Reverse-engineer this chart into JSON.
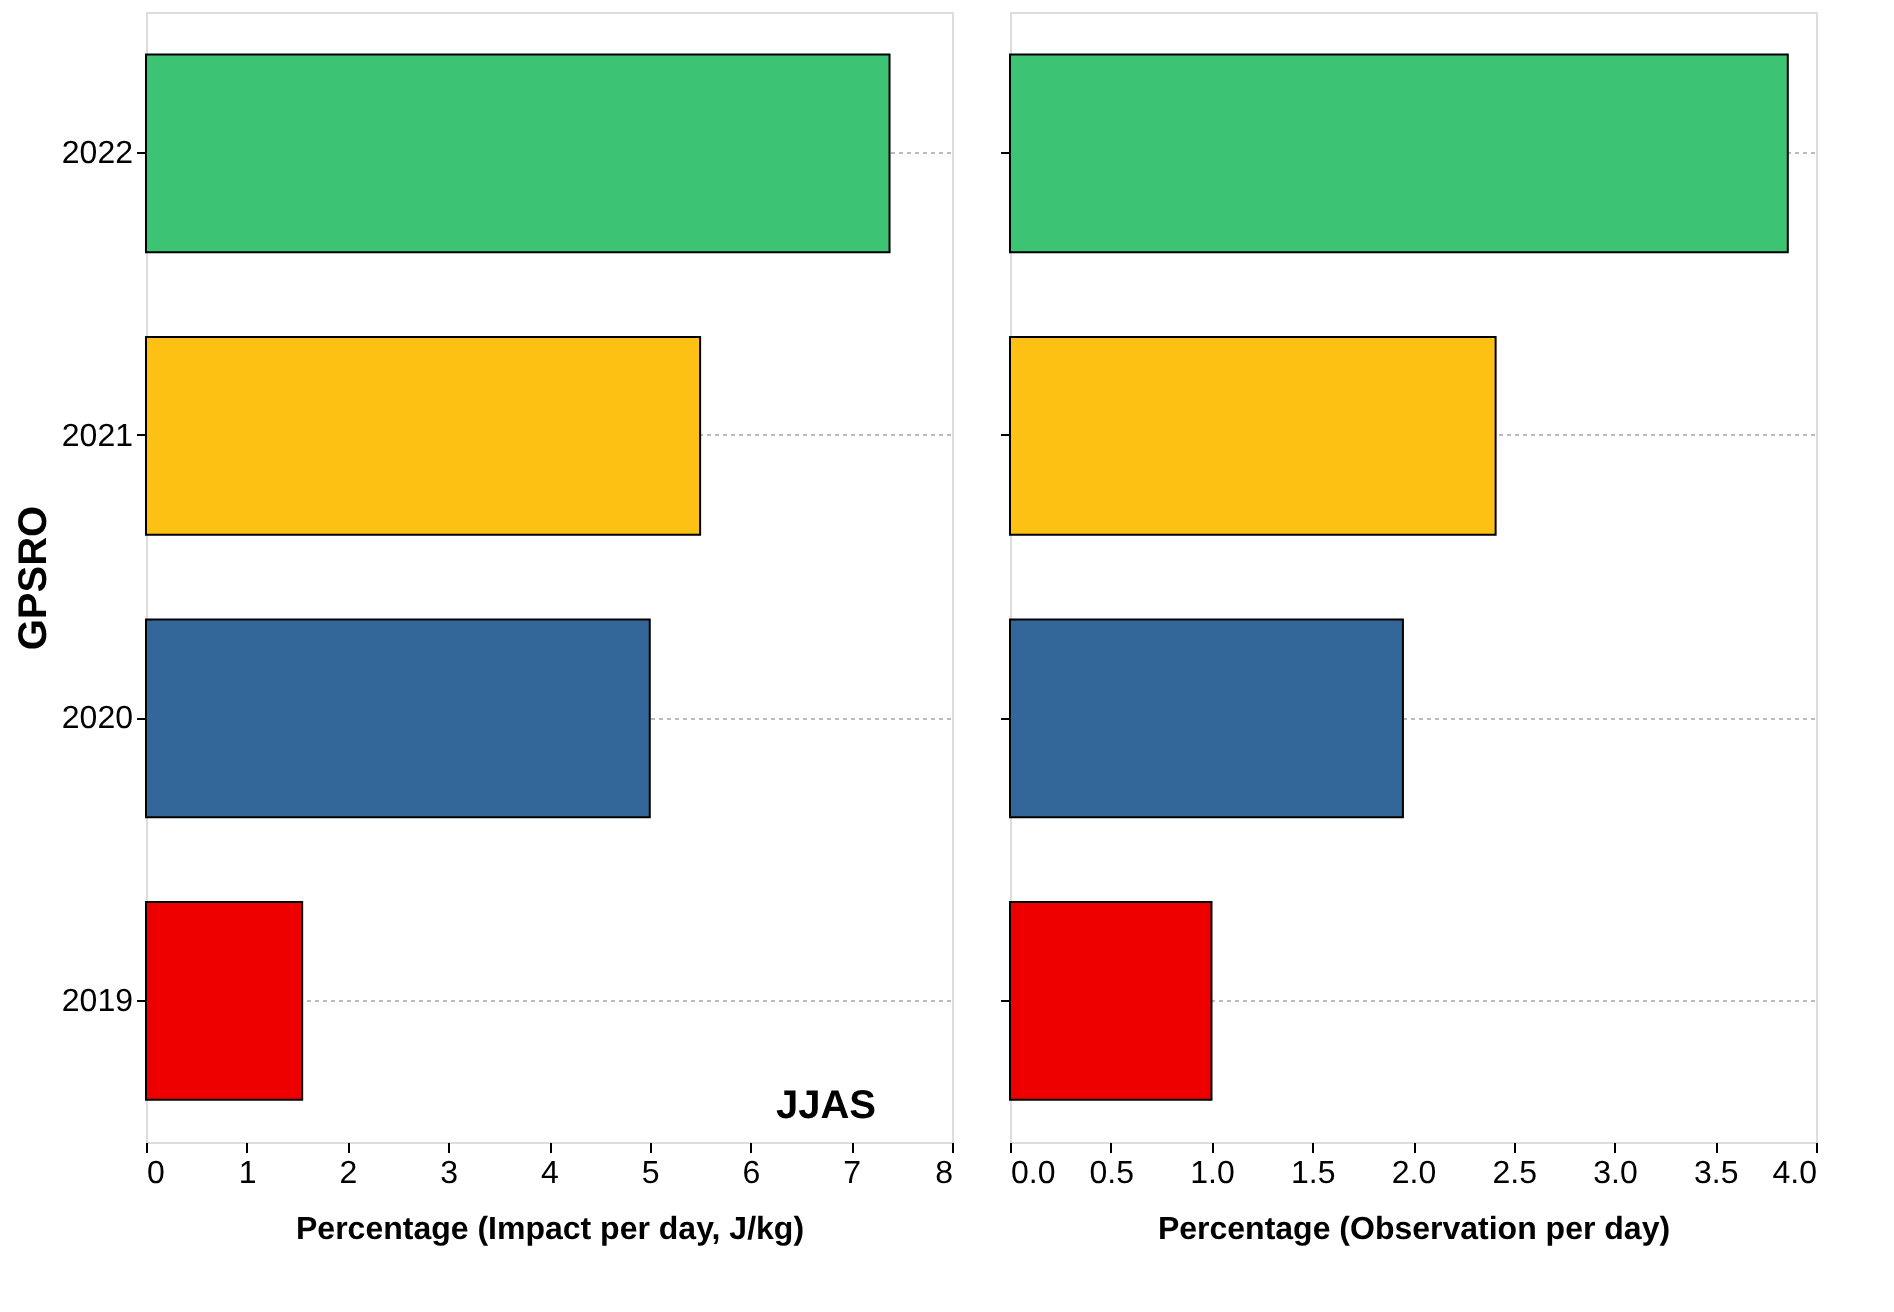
{
  "chart_data": [
    {
      "type": "bar",
      "orientation": "horizontal",
      "categories": [
        "2022",
        "2021",
        "2020",
        "2019"
      ],
      "values": [
        7.38,
        5.5,
        5.0,
        1.55
      ],
      "colors": [
        "#3cc474",
        "#fdc113",
        "#336699",
        "#ee0000"
      ],
      "xlim": [
        0,
        8
      ],
      "xticks": [
        0,
        1,
        2,
        3,
        4,
        5,
        6,
        7,
        8
      ],
      "xlabel": "Percentage (Impact per day, J/kg)",
      "ylabel": "GPSRO",
      "grid": "y",
      "annotations": [
        "JJAS"
      ]
    },
    {
      "type": "bar",
      "orientation": "horizontal",
      "categories": [
        "2022",
        "2021",
        "2020",
        "2019"
      ],
      "values": [
        3.86,
        2.41,
        1.95,
        1.0
      ],
      "colors": [
        "#3cc474",
        "#fdc113",
        "#336699",
        "#ee0000"
      ],
      "xlim": [
        0,
        4
      ],
      "xticks": [
        {
          "value": 0,
          "label": "0.0"
        },
        {
          "value": 0.5,
          "label": "0.5"
        },
        {
          "value": 1,
          "label": "1.0"
        },
        {
          "value": 1.5,
          "label": "1.5"
        },
        {
          "value": 2,
          "label": "2.0"
        },
        {
          "value": 2.5,
          "label": "2.5"
        },
        {
          "value": 3,
          "label": "3.0"
        },
        {
          "value": 3.5,
          "label": "3.5"
        },
        {
          "value": 4,
          "label": "4.0"
        }
      ],
      "xlabel": "Percentage (Observation per day)",
      "grid": "y",
      "tick_labels": "x"
    }
  ]
}
